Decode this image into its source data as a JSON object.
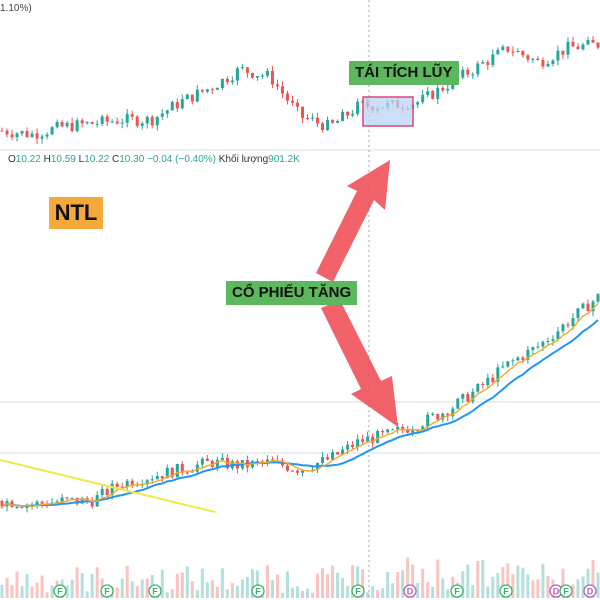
{
  "chart_data": [
    {
      "type": "line",
      "chart": "upper-price-candles",
      "ohlc_legend": {
        "open_label": "O",
        "open": "10.22",
        "high_label": "H",
        "high": "10.59",
        "low_label": "L",
        "low": "10.22",
        "close_label": "C",
        "close": "10.30",
        "change": "−0.04 (−0.40%)",
        "volume_label": "Khối lượng",
        "volume": "901.2K"
      },
      "top_label": "1.10%)",
      "annotation": "TÁI TÍCH LŨY",
      "x": [
        0,
        5,
        10,
        15,
        20,
        25,
        30,
        35,
        40,
        45,
        50,
        55,
        60,
        65,
        70,
        75,
        80,
        85,
        90,
        95,
        100
      ],
      "close": [
        9.6,
        9.5,
        9.7,
        9.8,
        9.9,
        9.9,
        10.4,
        10.8,
        11.3,
        11.1,
        10.0,
        9.7,
        10.3,
        10.3,
        10.4,
        10.9,
        11.4,
        11.9,
        11.5,
        11.9,
        12.0
      ]
    },
    {
      "type": "line",
      "chart": "lower-price-candles",
      "ticker": "NTL",
      "annotation": "CỔ PHIẾU TĂNG",
      "event_markers": [
        "F",
        "F",
        "F",
        "F",
        "F",
        "D",
        "F",
        "F",
        "D",
        "F",
        "D"
      ],
      "x": [
        0,
        5,
        10,
        15,
        20,
        25,
        30,
        35,
        40,
        45,
        50,
        55,
        60,
        65,
        70,
        75,
        80,
        85,
        90,
        95,
        100
      ],
      "close": [
        9.4,
        9.3,
        9.4,
        9.4,
        9.9,
        10.1,
        10.3,
        10.5,
        10.4,
        10.5,
        10.3,
        10.6,
        11.1,
        11.3,
        11.6,
        12.0,
        12.6,
        13.3,
        13.8,
        14.5,
        15.2
      ]
    }
  ],
  "colors": {
    "up": "#26a69a",
    "down": "#ef5350",
    "ma_fast": "#f7a72d",
    "ma_slow": "#2196f3",
    "trendline": "#f3e84a",
    "arrow": "#f0515a",
    "box_fill": "#bcd4f5",
    "box_border": "#d9477a"
  }
}
